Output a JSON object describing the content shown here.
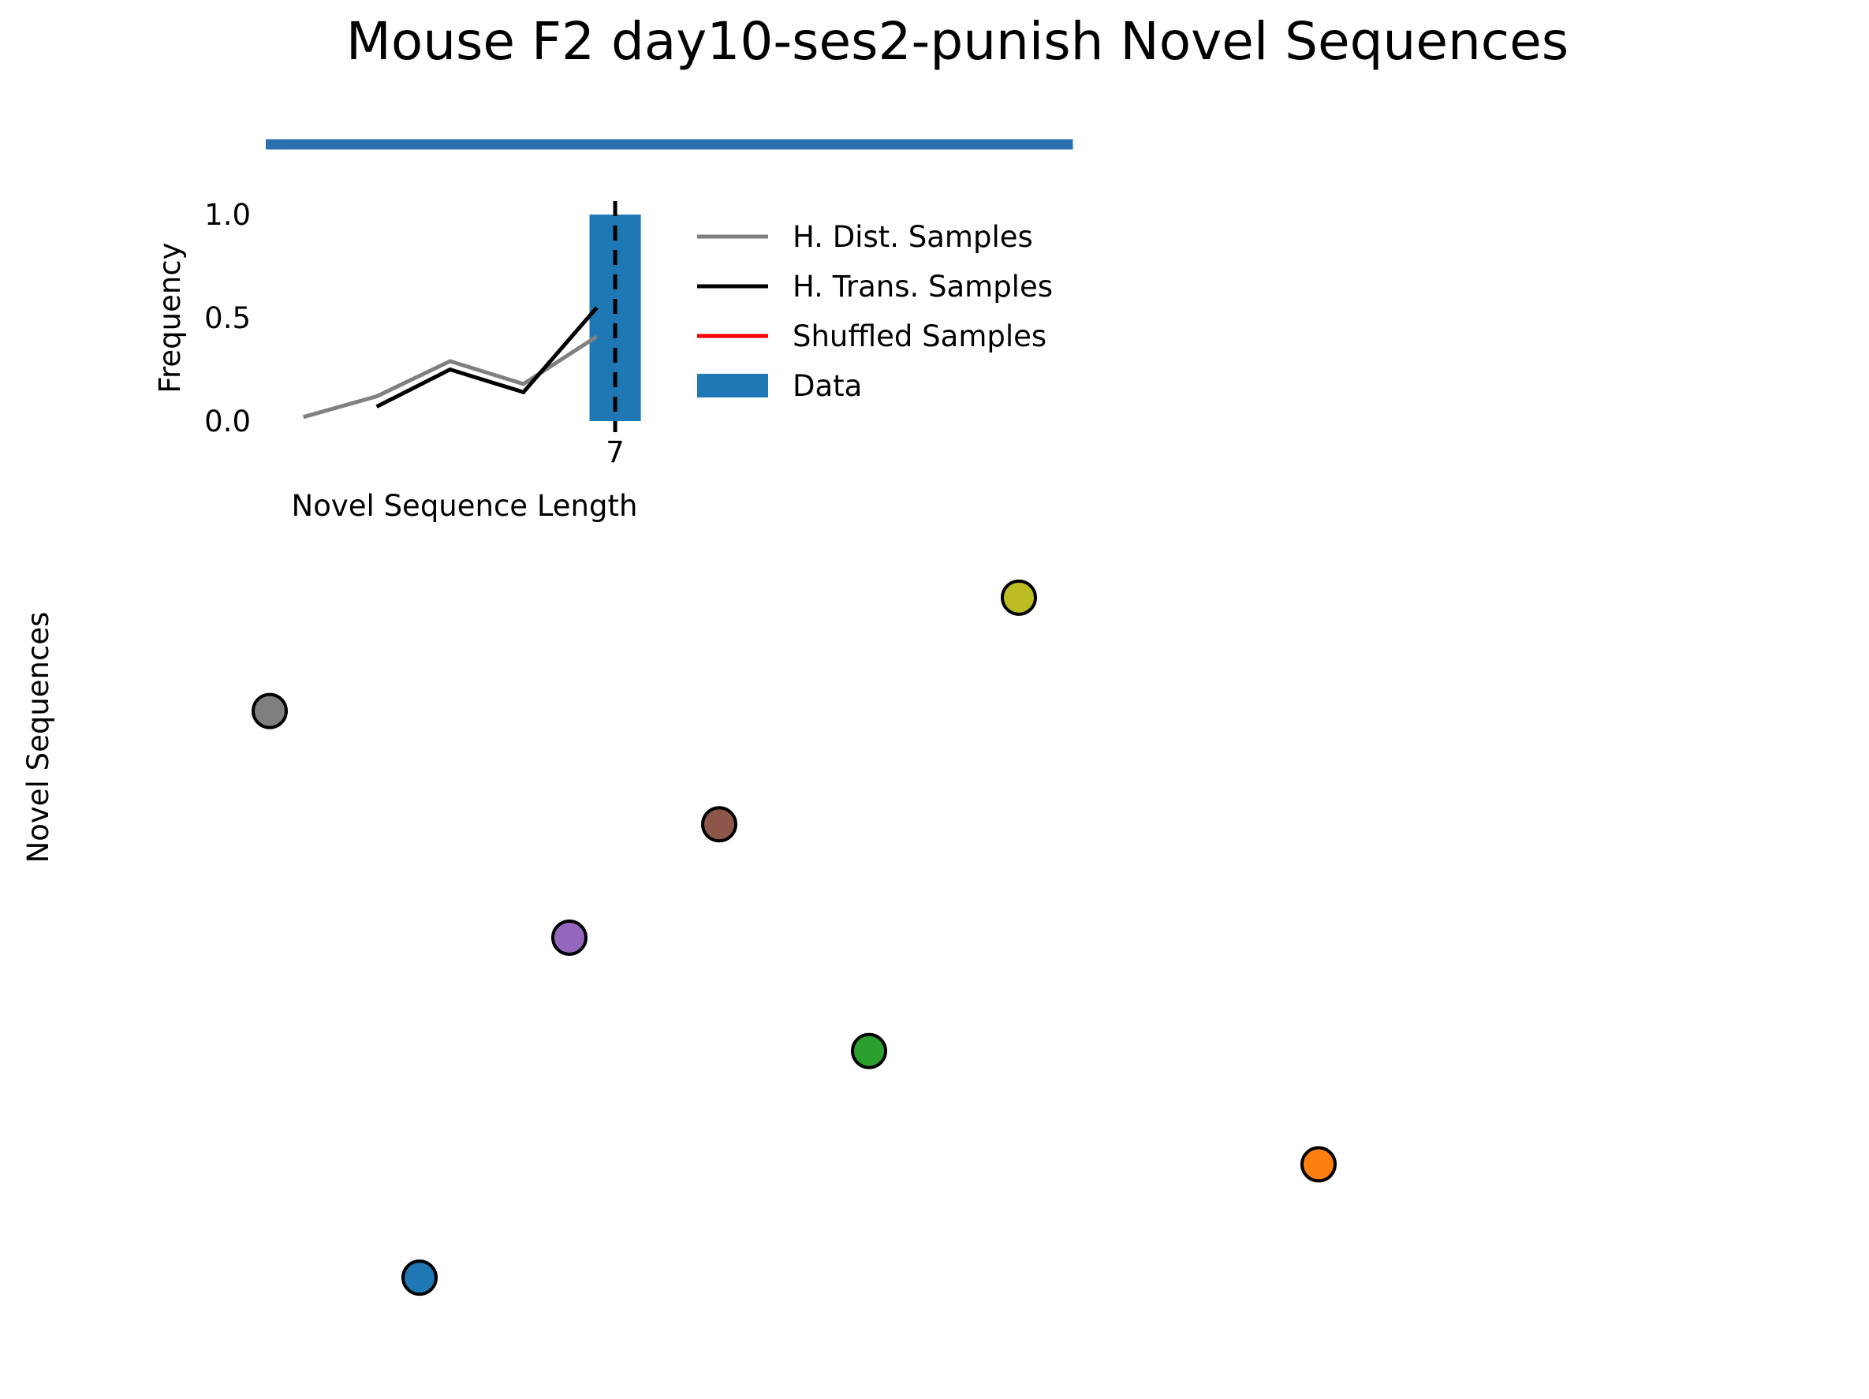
{
  "title": "Mouse F2 day10-ses2-punish Novel Sequences",
  "main_ylabel": "Novel Sequences",
  "chart_data": [
    {
      "type": "bar",
      "panel": "inset",
      "xlabel": "Novel Sequence Length",
      "ylabel": "Frequency",
      "xticks": [
        "7"
      ],
      "yticks": [
        "0.0",
        "0.5",
        "1.0"
      ],
      "ylim": [
        0,
        1.05
      ],
      "xlim": [
        2.4,
        7.3
      ],
      "bar": {
        "name": "Data",
        "x": 7,
        "value": 1.0,
        "color": "#1f77b4"
      },
      "reference_line": {
        "x": 7,
        "style": "dashed",
        "color": "#000000"
      },
      "series": [
        {
          "name": "H. Dist. Samples",
          "color": "#808080",
          "x": [
            2.75,
            3.75,
            4.75,
            5.75,
            6.75
          ],
          "values": [
            0.02,
            0.12,
            0.29,
            0.18,
            0.41
          ]
        },
        {
          "name": "H. Trans. Samples",
          "color": "#000000",
          "x": [
            3.75,
            4.75,
            5.75,
            6.75
          ],
          "values": [
            0.07,
            0.25,
            0.14,
            0.55
          ]
        },
        {
          "name": "Shuffled Samples",
          "color": "#ff0000",
          "x": [],
          "values": []
        }
      ],
      "legend": [
        {
          "label": "H. Dist. Samples",
          "kind": "line",
          "color": "#808080"
        },
        {
          "label": "H. Trans. Samples",
          "kind": "line",
          "color": "#000000"
        },
        {
          "label": "Shuffled Samples",
          "kind": "line",
          "color": "#ff0000"
        },
        {
          "label": "Data",
          "kind": "patch",
          "color": "#1f77b4"
        }
      ],
      "legend_placement": "right of inset"
    },
    {
      "type": "scatter",
      "panel": "main",
      "ylabel": "Novel Sequences",
      "xlim": [
        0,
        8
      ],
      "ylim": [
        0.5,
        7.5
      ],
      "top_bar": {
        "x_start": 0,
        "x_end": 5.05,
        "color": "#2a70b0"
      },
      "points": [
        {
          "x": 1.0,
          "y": 1,
          "color": "#1f77b4"
        },
        {
          "x": 7.0,
          "y": 2,
          "color": "#ff7f0e"
        },
        {
          "x": 4.0,
          "y": 3,
          "color": "#2ca02c"
        },
        {
          "x": 2.0,
          "y": 4,
          "color": "#9467bd"
        },
        {
          "x": 3.0,
          "y": 5,
          "color": "#8c564b"
        },
        {
          "x": 0.0,
          "y": 6,
          "color": "#7f7f7f"
        },
        {
          "x": 5.0,
          "y": 7,
          "color": "#bcbd22"
        }
      ]
    }
  ]
}
